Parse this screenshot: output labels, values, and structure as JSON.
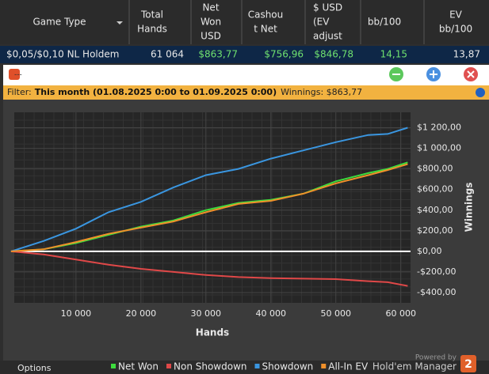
{
  "table": {
    "columns": [
      [
        "Game Type"
      ],
      [
        "Total",
        "Hands"
      ],
      [
        "Net",
        "Won",
        "USD"
      ],
      [
        "Cashou",
        "t Net"
      ],
      [
        "$ USD",
        "(EV",
        "adjust"
      ],
      [
        "bb/100"
      ],
      [
        "EV",
        "bb/100"
      ]
    ],
    "rows": [
      [
        "$0,05/$0,10 NL Holdem",
        "61 064",
        "$863,77",
        "$756,96",
        "$846,78",
        "14,15",
        "13,87"
      ]
    ]
  },
  "window": {
    "title": "---"
  },
  "filter": {
    "label": "Filter:",
    "value": "This month (01.08.2025 0:00 to 01.09.2025 0:00)",
    "winnings": "Winnings: $863,77"
  },
  "footer": {
    "options": "Options",
    "powered": "Powered by",
    "brand": "Hold'em Manager",
    "logo": "2"
  },
  "chart_data": {
    "type": "line",
    "x_label": "Hands",
    "y_label": "Winnings",
    "x": [
      0,
      5000,
      10000,
      15000,
      20000,
      25000,
      30000,
      35000,
      40000,
      45000,
      50000,
      55000,
      58000,
      61064
    ],
    "series": [
      {
        "name": "Net Won",
        "color": "#3ddc3d",
        "values": [
          0,
          20,
          80,
          160,
          240,
          300,
          400,
          470,
          500,
          560,
          680,
          760,
          800,
          864
        ]
      },
      {
        "name": "Non Showdown",
        "color": "#e04848",
        "values": [
          0,
          -30,
          -80,
          -130,
          -170,
          -200,
          -230,
          -250,
          -260,
          -265,
          -270,
          -290,
          -300,
          -336
        ]
      },
      {
        "name": "Showdown",
        "color": "#3a96e0",
        "values": [
          0,
          100,
          220,
          380,
          480,
          620,
          740,
          800,
          900,
          980,
          1060,
          1130,
          1140,
          1200
        ]
      },
      {
        "name": "All-In EV",
        "color": "#f0902a",
        "values": [
          0,
          20,
          90,
          170,
          230,
          290,
          380,
          460,
          490,
          560,
          660,
          740,
          790,
          847
        ]
      }
    ],
    "xlim": [
      500,
      61500
    ],
    "ylim": [
      -500,
      1350
    ],
    "xticks": [
      {
        "value": 10000,
        "label": "10 000"
      },
      {
        "value": 20000,
        "label": "20 000"
      },
      {
        "value": 30000,
        "label": "30 000"
      },
      {
        "value": 40000,
        "label": "40 000"
      },
      {
        "value": 50000,
        "label": "50 000"
      },
      {
        "value": 60000,
        "label": "60 000"
      }
    ],
    "yticks": [
      {
        "value": -400,
        "label": "-$400,00"
      },
      {
        "value": -200,
        "label": "-$200,00"
      },
      {
        "value": 0,
        "label": "$0,00"
      },
      {
        "value": 200,
        "label": "$200,00"
      },
      {
        "value": 400,
        "label": "$400,00"
      },
      {
        "value": 600,
        "label": "$600,00"
      },
      {
        "value": 800,
        "label": "$800,00"
      },
      {
        "value": 1000,
        "label": "$1 000,00"
      },
      {
        "value": 1200,
        "label": "$1 200,00"
      }
    ],
    "grid": true
  }
}
